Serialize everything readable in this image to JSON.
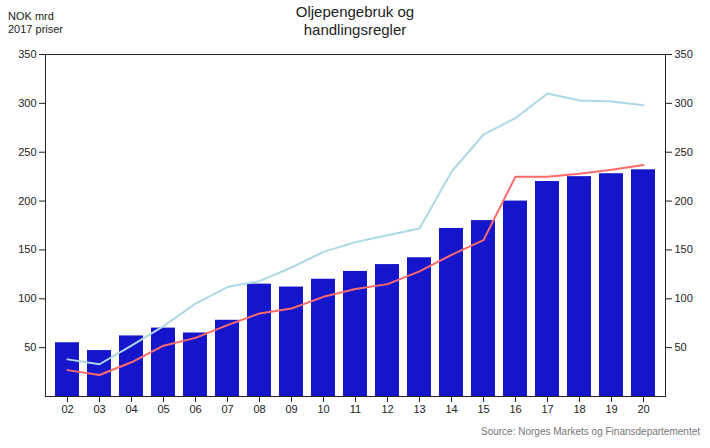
{
  "chart_data": {
    "type": "bar",
    "title": "Oljepengebruk og\nhandlingsregler",
    "ylabel": "NOK mrd\n2017 priser",
    "annotations": [
      "Source: Norges Markets og Finansdepartementet"
    ],
    "categories": [
      "02",
      "03",
      "04",
      "05",
      "06",
      "07",
      "08",
      "09",
      "10",
      "11",
      "12",
      "13",
      "14",
      "15",
      "16",
      "17",
      "18",
      "19",
      "20"
    ],
    "series": [
      {
        "type": "bar",
        "color": "#1515CC",
        "values": [
          55,
          47,
          62,
          70,
          65,
          78,
          115,
          112,
          120,
          128,
          135,
          142,
          172,
          180,
          200,
          220,
          225,
          228,
          232
        ]
      },
      {
        "type": "line",
        "color": "#FF6B6B",
        "values": [
          27,
          22,
          35,
          52,
          60,
          73,
          85,
          90,
          102,
          110,
          115,
          128,
          145,
          160,
          225,
          225,
          228,
          232,
          237
        ]
      },
      {
        "type": "line",
        "color": "#ADD8E6",
        "values": [
          38,
          33,
          52,
          72,
          95,
          112,
          118,
          132,
          148,
          158,
          165,
          172,
          230,
          268,
          285,
          310,
          303,
          302,
          298
        ]
      }
    ],
    "ylim": [
      0,
      350
    ],
    "yticks": [
      50,
      100,
      150,
      200,
      250,
      300,
      350
    ],
    "y2lim": [
      0,
      350
    ],
    "y2ticks": [
      50,
      100,
      150,
      200,
      250,
      300,
      350
    ],
    "grid": false
  }
}
